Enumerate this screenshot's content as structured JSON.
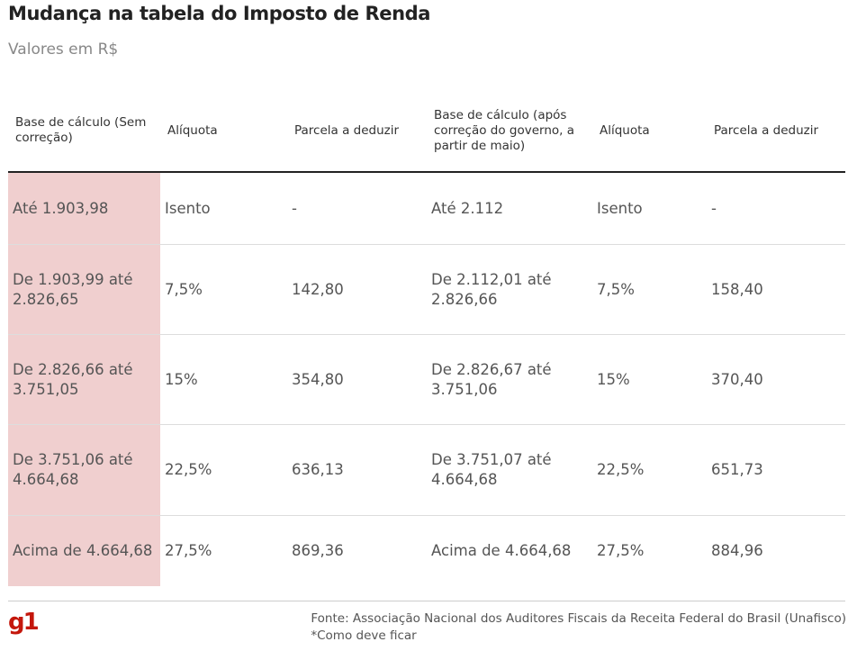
{
  "title": "Mudança na tabela do Imposto de Renda",
  "subtitle": "Valores em R$",
  "chart_data": {
    "type": "table",
    "columns": [
      "Base de cálculo (Sem correção)",
      "Alíquota",
      "Parcela a deduzir",
      "Base de cálculo (após correção do governo, a partir de maio)",
      "Alíquota",
      "Parcela a deduzir"
    ],
    "rows": [
      [
        "Até 1.903,98",
        "Isento",
        "-",
        "Até 2.112",
        "Isento",
        "-"
      ],
      [
        "De 1.903,99 até 2.826,65",
        "7,5%",
        "142,80",
        "De 2.112,01 até 2.826,66",
        "7,5%",
        "158,40"
      ],
      [
        "De 2.826,66 até 3.751,05",
        "15%",
        "354,80",
        "De 2.826,67 até 3.751,06",
        "15%",
        "370,40"
      ],
      [
        "De 3.751,06 até 4.664,68",
        "22,5%",
        "636,13",
        "De 3.751,07 até 4.664,68",
        "22,5%",
        "651,73"
      ],
      [
        "Acima de 4.664,68",
        "27,5%",
        "869,36",
        "Acima de 4.664,68",
        "27,5%",
        "884,96"
      ]
    ]
  },
  "footer": {
    "logo": "g1",
    "source": "Fonte: Associação Nacional dos Auditores Fiscais da Receita Federal do Brasil (Unafisco)",
    "note": "*Como deve ficar"
  },
  "colors": {
    "highlight": "#f0cfcf",
    "brand": "#c4170c"
  }
}
